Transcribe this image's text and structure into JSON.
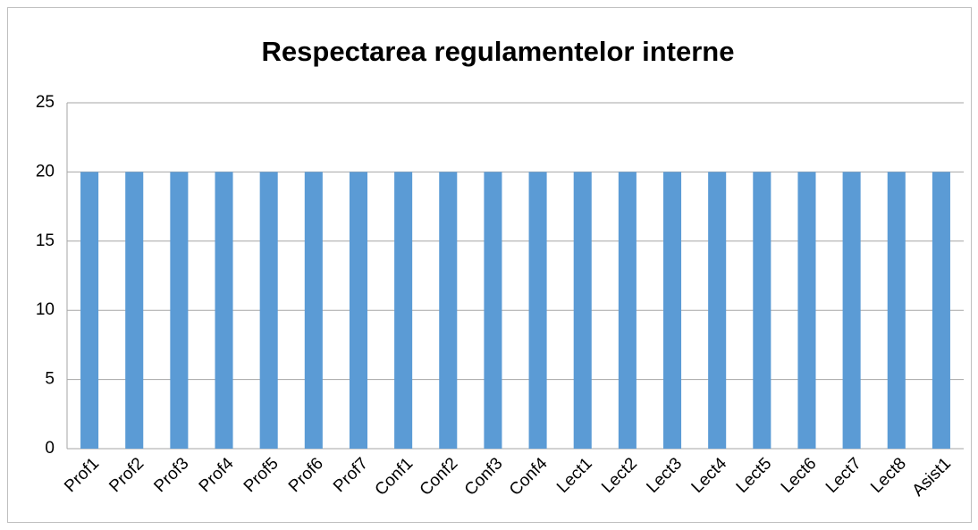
{
  "chart_data": {
    "type": "bar",
    "title": "Respectarea regulamentelor interne",
    "categories": [
      "Prof1",
      "Prof2",
      "Prof3",
      "Prof4",
      "Prof5",
      "Prof6",
      "Prof7",
      "Conf1",
      "Conf2",
      "Conf3",
      "Conf4",
      "Lect1",
      "Lect2",
      "Lect3",
      "Lect4",
      "Lect5",
      "Lect6",
      "Lect7",
      "Lect8",
      "Asist1"
    ],
    "values": [
      20,
      20,
      20,
      20,
      20,
      20,
      20,
      20,
      20,
      20,
      20,
      20,
      20,
      20,
      20,
      20,
      20,
      20,
      20,
      20
    ],
    "color": "#5b9bd5",
    "ylim": [
      0,
      25
    ],
    "yticks": [
      0,
      5,
      10,
      15,
      20,
      25
    ],
    "grid": true
  }
}
